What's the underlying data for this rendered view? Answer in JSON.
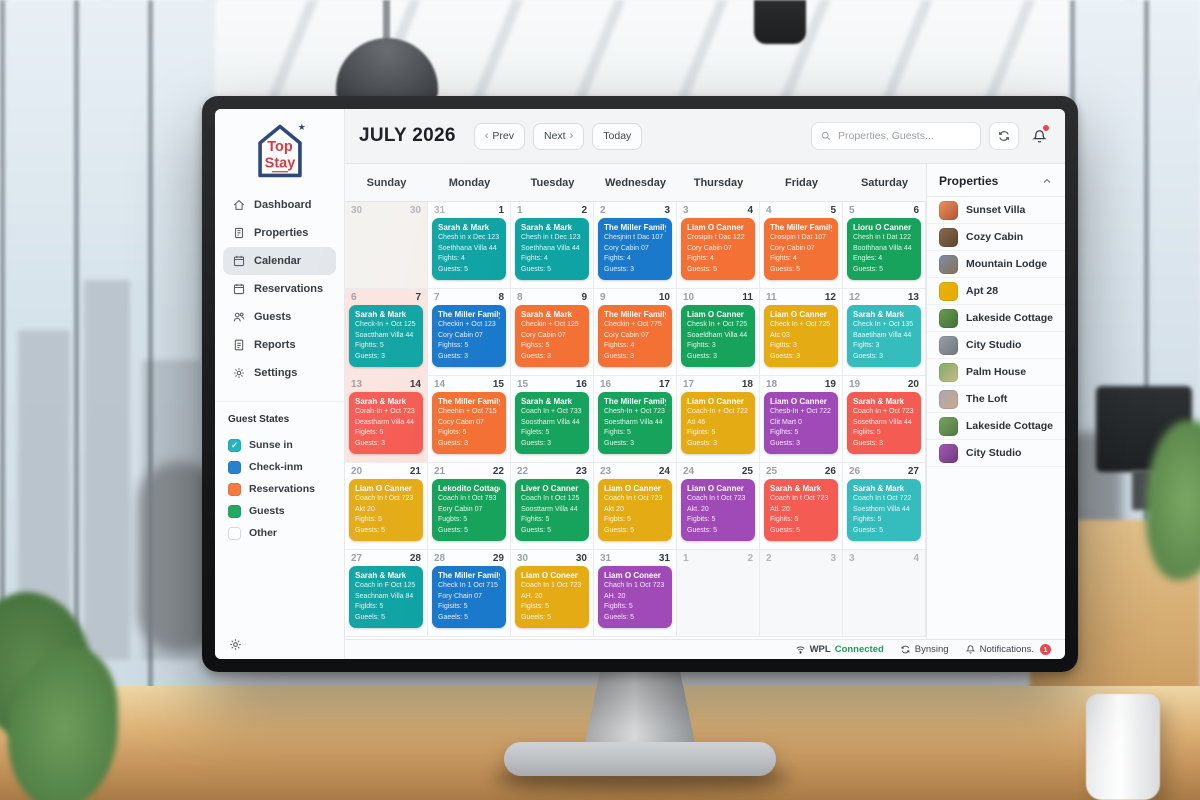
{
  "app": {
    "logo": {
      "line1": "Top",
      "line2": "Stay"
    }
  },
  "sidebar": {
    "active": "Calendar",
    "items": [
      {
        "label": "Dashboard",
        "icon": "home"
      },
      {
        "label": "Properties",
        "icon": "building"
      },
      {
        "label": "Calendar",
        "icon": "calendar"
      },
      {
        "label": "Reservations",
        "icon": "calendar"
      },
      {
        "label": "Guests",
        "icon": "users"
      },
      {
        "label": "Reports",
        "icon": "report"
      },
      {
        "label": "Settings",
        "icon": "gear"
      }
    ],
    "guest_states": {
      "title": "Guest States",
      "items": [
        {
          "label": "Sunse in",
          "color": "#12b1b8",
          "checked": true
        },
        {
          "label": "Check-inm",
          "color": "#1b79cb",
          "checked": false
        },
        {
          "label": "Reservations",
          "color": "#f47136",
          "checked": false
        },
        {
          "label": "Guests",
          "color": "#17a35c",
          "checked": false
        },
        {
          "label": "Other",
          "color": "#ffffff",
          "checked": false
        }
      ]
    }
  },
  "header": {
    "title": "JULY 2026",
    "prev_label": "Prev",
    "next_label": "Next",
    "today_label": "Today",
    "search_placeholder": "Properties, Guests..."
  },
  "calendar": {
    "day_headers": [
      "Sunday",
      "Monday",
      "Tuesday",
      "Wednesday",
      "Thursday",
      "Friday",
      "Saturday"
    ],
    "event_colors": {
      "teal": "#0fa3a3",
      "teal2": "#35bdbd",
      "blue": "#1b79cb",
      "orange": "#f47136",
      "green": "#17a35c",
      "yellow": "#e4ab15",
      "purple": "#a04ab8",
      "red": "#f45b52"
    },
    "weeks": [
      [
        {
          "d1": "30",
          "d2": "30",
          "bg": "beige",
          "m1": true,
          "m2": true,
          "event": null
        },
        {
          "d1": "31",
          "d2": "1",
          "m1": true,
          "event": {
            "title": "Sarah & Mark",
            "color": "teal",
            "lines": [
              "Chesh in x Dec 123",
              "Soethhana Villa 44",
              "Fights: 4",
              "Guests: 5"
            ]
          }
        },
        {
          "d1": "1",
          "d2": "2",
          "event": {
            "title": "Sarah & Mark",
            "color": "teal",
            "lines": [
              "Chesh in t Dec 123",
              "Soethhana Villa 44",
              "Fights: 4",
              "Guests: 5"
            ]
          }
        },
        {
          "d1": "2",
          "d2": "3",
          "event": {
            "title": "The Miller Family",
            "color": "blue",
            "lines": [
              "Chesjnin t Dac 107",
              "Cory Cabin 07",
              "Fights: 4",
              "Guests: 3"
            ]
          }
        },
        {
          "d1": "3",
          "d2": "4",
          "event": {
            "title": "Liam O Canner",
            "color": "orange",
            "lines": [
              "Crosipin t Dac 122",
              "Cory Cabin 07",
              "Fights: 4",
              "Guests: 5"
            ]
          }
        },
        {
          "d1": "4",
          "d2": "5",
          "event": {
            "title": "The Miller Family",
            "color": "orange",
            "lines": [
              "Crosipin t Dat 107",
              "Cory Cabin 07",
              "Fights: 4",
              "Guests: 5"
            ]
          }
        },
        {
          "d1": "5",
          "d2": "6",
          "event": {
            "title": "Lioru O Canner",
            "color": "green",
            "lines": [
              "Chesh in t Dat 122",
              "Boothhana Villa 44",
              "Engles: 4",
              "Guests: 5"
            ]
          }
        }
      ],
      [
        {
          "d1": "6",
          "d2": "7",
          "bg": "pink",
          "event": {
            "title": "Sarah & Mark",
            "color": "teal",
            "lines": [
              "Check-In + Oct 125",
              "Soacttham Villa 44",
              "Fightts: 5",
              "Guests: 3"
            ]
          }
        },
        {
          "d1": "7",
          "d2": "8",
          "event": {
            "title": "The Miller Family",
            "color": "blue",
            "lines": [
              "Checkin + Oct 123",
              "Cory Cabin 07",
              "Fightss: 5",
              "Guests: 3"
            ]
          }
        },
        {
          "d1": "8",
          "d2": "9",
          "event": {
            "title": "Sarah & Mark",
            "color": "orange",
            "lines": [
              "Checkin + Oct 125",
              "Cory Cabin 07",
              "Fighss: 5",
              "Guests: 3"
            ]
          }
        },
        {
          "d1": "9",
          "d2": "10",
          "event": {
            "title": "The Miller Family",
            "color": "orange",
            "lines": [
              "Checkin + Oct 775",
              "Cory Cabin 07",
              "Fightss: 4",
              "Guests: 3"
            ]
          }
        },
        {
          "d1": "10",
          "d2": "11",
          "event": {
            "title": "Liam O Canner",
            "color": "green",
            "lines": [
              "Chesk In + Oct 725",
              "Soaeldham Villa 44",
              "Fightts: 3",
              "Guests: 3"
            ]
          }
        },
        {
          "d1": "11",
          "d2": "12",
          "event": {
            "title": "Liam O Canner",
            "color": "yellow",
            "lines": [
              "Check In + Oct 725",
              "Atc 03",
              "Figttts: 3",
              "Goests: 3"
            ]
          }
        },
        {
          "d1": "12",
          "d2": "13",
          "event": {
            "title": "Sarah & Mark",
            "color": "teal2",
            "lines": [
              "Check In + Oct 135",
              "Baaetiham Villa 44",
              "Figltts: 3",
              "Goests: 3"
            ]
          }
        }
      ],
      [
        {
          "d1": "13",
          "d2": "14",
          "bg": "pink",
          "event": {
            "title": "Sarah & Mark",
            "color": "red",
            "lines": [
              "Corah-In + Oct 723",
              "Deastharm Villa 44",
              "Figlets: 5",
              "Guests: 3"
            ]
          }
        },
        {
          "d1": "14",
          "d2": "15",
          "event": {
            "title": "The Miller Family",
            "color": "orange",
            "lines": [
              "Cheehin + Oct 715",
              "Cocy Cabin 07",
              "Figlots: 5",
              "Guests: 3"
            ]
          }
        },
        {
          "d1": "15",
          "d2": "16",
          "event": {
            "title": "Sarah & Mark",
            "color": "green",
            "lines": [
              "Coach In + Oct 733",
              "Soostharm Villa 44",
              "Figlets: 5",
              "Guests: 3"
            ]
          }
        },
        {
          "d1": "16",
          "d2": "17",
          "event": {
            "title": "The Miller Family",
            "color": "green",
            "lines": [
              "Chesh-In + Oct 723",
              "Soestharm Villa 44",
              "Fights: 5",
              "Guests: 3"
            ]
          }
        },
        {
          "d1": "17",
          "d2": "18",
          "event": {
            "title": "Liam O Canner",
            "color": "yellow",
            "lines": [
              "Coach-In + Oct 722",
              "Att 46",
              "Figints: 5",
              "Guests: 3"
            ]
          }
        },
        {
          "d1": "18",
          "d2": "19",
          "event": {
            "title": "Liam O Canner",
            "color": "purple",
            "lines": [
              "Chesb-In + Oct 722",
              "Clit Mart 0",
              "Figlhts: 5",
              "Guests: 3"
            ]
          }
        },
        {
          "d1": "19",
          "d2": "20",
          "event": {
            "title": "Sarah & Mark",
            "color": "red",
            "lines": [
              "Coach In + Oct 723",
              "Sosetharm Villa 44",
              "Figliits: 5",
              "Guests: 3"
            ]
          }
        }
      ],
      [
        {
          "d1": "20",
          "d2": "21",
          "event": {
            "title": "Liam O Canner",
            "color": "yellow",
            "lines": [
              "Coach In t Oct 723",
              "Akt 20",
              "Fights: 5",
              "Guests: 5"
            ]
          }
        },
        {
          "d1": "21",
          "d2": "22",
          "event": {
            "title": "Lekodito Cottage",
            "color": "green",
            "lines": [
              "Coach In t Oct 793",
              "Eory Cabin 07",
              "Fugbts: 5",
              "Guests: 5"
            ]
          }
        },
        {
          "d1": "22",
          "d2": "23",
          "event": {
            "title": "Liver O Canner",
            "color": "green",
            "lines": [
              "Coach In t Oct 125",
              "Soosttarm Villa 44",
              "Fighits: 5",
              "Guests: 5"
            ]
          }
        },
        {
          "d1": "23",
          "d2": "24",
          "event": {
            "title": "Liam O Canner",
            "color": "yellow",
            "lines": [
              "Coach In t Oct 723",
              "Akt 20",
              "Figbts: 5",
              "Guests: 5"
            ]
          }
        },
        {
          "d1": "24",
          "d2": "25",
          "event": {
            "title": "Liam O Canner",
            "color": "purple",
            "lines": [
              "Coach In t Oct 723",
              "Akt. 20",
              "Figbits: 5",
              "Guests: 5"
            ]
          }
        },
        {
          "d1": "25",
          "d2": "26",
          "event": {
            "title": "Sarah & Mark",
            "color": "red",
            "lines": [
              "Coach In t Oct 723",
              "Atl. 20",
              "Fighits: 5",
              "Guests: 5"
            ]
          }
        },
        {
          "d1": "26",
          "d2": "27",
          "event": {
            "title": "Sarah & Mark",
            "color": "teal2",
            "lines": [
              "Coach In t Oct 722",
              "Soesthorn Villa 44",
              "Fighits: 5",
              "Guests: 5"
            ]
          }
        }
      ],
      [
        {
          "d1": "27",
          "d2": "28",
          "event": {
            "title": "Sarah & Mark",
            "color": "teal",
            "lines": [
              "Coach in F Oct 125",
              "Seachnam Villa 84",
              "Figldts: 5",
              "Gueels: 5"
            ]
          }
        },
        {
          "d1": "28",
          "d2": "29",
          "event": {
            "title": "The Miller Family",
            "color": "blue",
            "lines": [
              "Check In 1 Oct 715",
              "Fory Chain 07",
              "Figisits: 5",
              "Gaeels: 5"
            ]
          }
        },
        {
          "d1": "30",
          "d2": "30",
          "event": {
            "title": "Liam O Coneer",
            "color": "yellow",
            "lines": [
              "Coach In 1 Oct 723",
              "AH. 20",
              "Figlsts: 5",
              "Gueels: 5"
            ]
          }
        },
        {
          "d1": "31",
          "d2": "31",
          "event": {
            "title": "Liam O Coneer",
            "color": "purple",
            "lines": [
              "Chach In 1 Oct 723",
              "AH. 20",
              "Figbfts: 5",
              "Gueels: 5"
            ]
          }
        },
        {
          "d1": "1",
          "d2": "2",
          "bg": "gray",
          "m1": true,
          "m2": true,
          "event": null
        },
        {
          "d1": "2",
          "d2": "3",
          "bg": "gray",
          "m1": true,
          "m2": true,
          "event": null
        },
        {
          "d1": "3",
          "d2": "4",
          "bg": "gray",
          "m1": true,
          "m2": true,
          "event": null
        }
      ]
    ]
  },
  "properties_panel": {
    "title": "Properties",
    "items": [
      {
        "name": "Sunset Villa",
        "thumb": [
          "#e8955a",
          "#b4513a"
        ]
      },
      {
        "name": "Cozy Cabin",
        "thumb": [
          "#8a6a4a",
          "#5a4632"
        ]
      },
      {
        "name": "Mountain Lodge",
        "thumb": [
          "#7a8fa6",
          "#8a6f52"
        ]
      },
      {
        "name": "Apt 28",
        "thumb": [
          "#eab308",
          "#e5a90a"
        ]
      },
      {
        "name": "Lakeside Cottage",
        "thumb": [
          "#6a9c4f",
          "#3f6f3a"
        ]
      },
      {
        "name": "City Studio",
        "thumb": [
          "#9aa0a8",
          "#6f767e"
        ]
      },
      {
        "name": "Palm House",
        "thumb": [
          "#7fae66",
          "#c9b98a"
        ]
      },
      {
        "name": "The Loft",
        "thumb": [
          "#aca7b2",
          "#c9a98a"
        ]
      },
      {
        "name": "Lakeside Cottage",
        "thumb": [
          "#7aa35c",
          "#4c7a42"
        ]
      },
      {
        "name": "City Studio",
        "thumb": [
          "#a05ab0",
          "#6f3a80"
        ]
      }
    ]
  },
  "status_bar": {
    "wpl_label": "WPL",
    "connected_label": "Connected",
    "syncing_label": "Bynsing",
    "notifications_label": "Notifications.",
    "badge": "1"
  }
}
